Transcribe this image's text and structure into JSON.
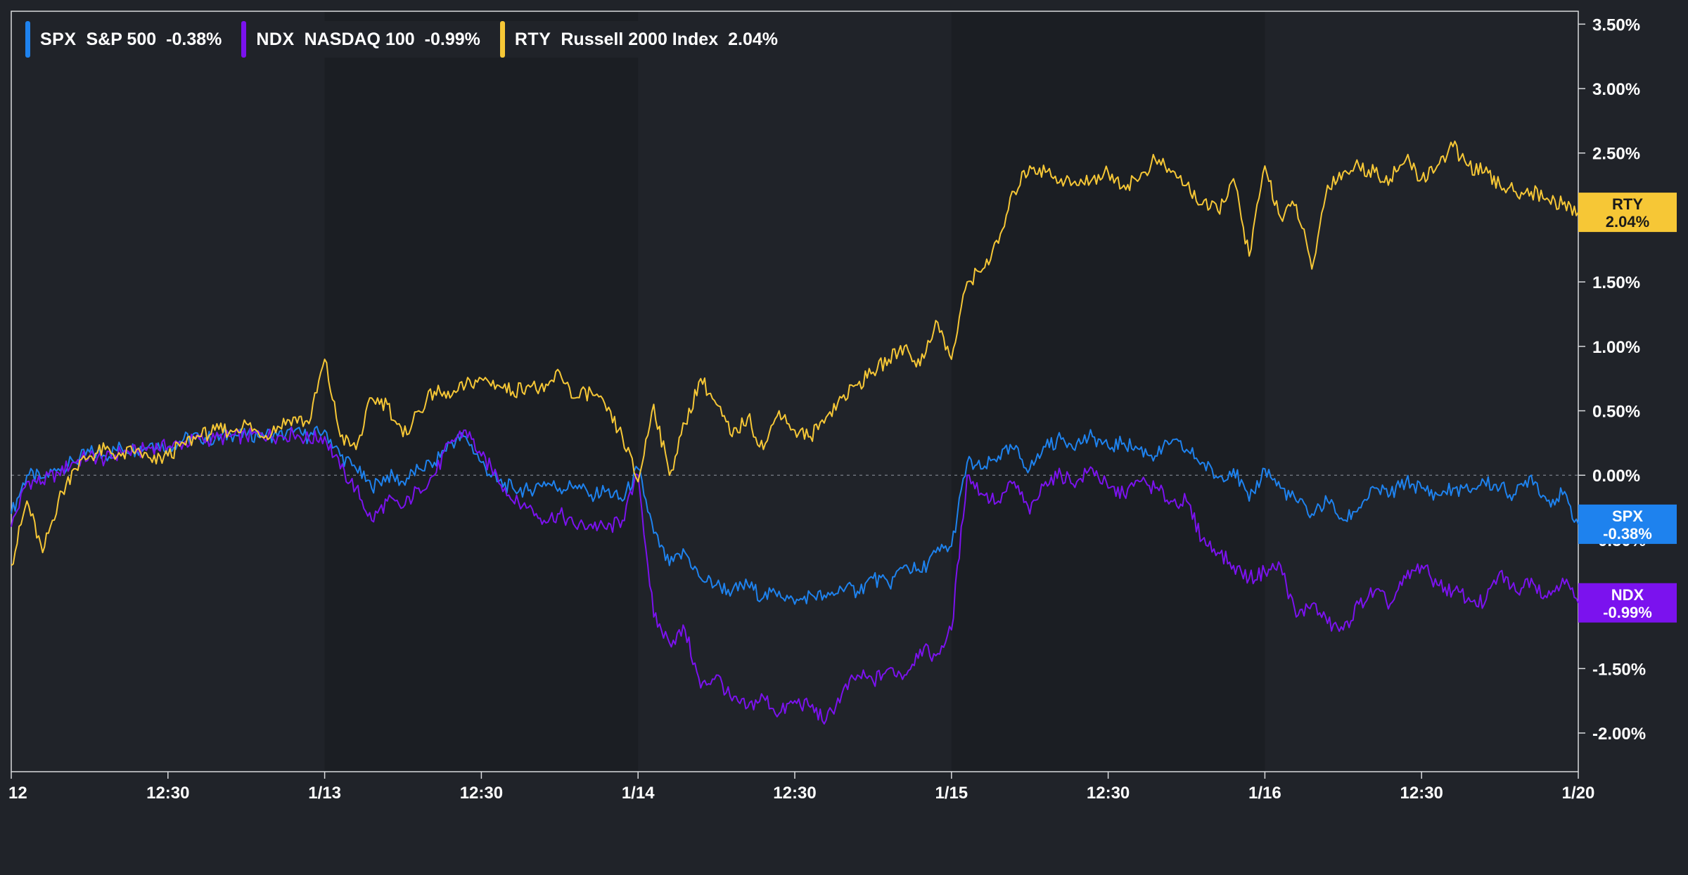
{
  "chart_data": {
    "type": "line",
    "ylabel_format": "percent",
    "ylim": [
      -2.3,
      3.6
    ],
    "yticks": [
      "3.50%",
      "3.00%",
      "2.50%",
      "2.00%",
      "1.50%",
      "1.00%",
      "0.50%",
      "0.00%",
      "-0.50%",
      "-1.00%",
      "-1.50%",
      "-2.00%"
    ],
    "ytick_values": [
      3.5,
      3.0,
      2.5,
      2.0,
      1.5,
      1.0,
      0.5,
      0.0,
      -0.5,
      -1.0,
      -1.5,
      -2.0
    ],
    "xticks": [
      "12",
      "12:30",
      "1/13",
      "12:30",
      "1/14",
      "12:30",
      "1/15",
      "12:30",
      "1/16",
      "12:30",
      "1/20"
    ],
    "xtick_values": [
      0,
      0.5,
      1,
      1.5,
      2,
      2.5,
      3,
      3.5,
      4,
      4.5,
      5
    ],
    "xlim": [
      0,
      5
    ],
    "baseline": 0,
    "grid": false,
    "legend_position": "top-left",
    "shaded_sessions": [
      [
        1,
        2
      ],
      [
        3,
        4
      ]
    ],
    "series": [
      {
        "code": "SPX",
        "name": "S&P 500",
        "change": "-0.38%",
        "last": -0.38,
        "color": "#1e82ee",
        "x": [
          0.0,
          0.05,
          0.1,
          0.15,
          0.2,
          0.25,
          0.3,
          0.35,
          0.4,
          0.45,
          0.5,
          0.55,
          0.6,
          0.65,
          0.7,
          0.75,
          0.8,
          0.85,
          0.9,
          0.95,
          1.0,
          1.05,
          1.1,
          1.15,
          1.2,
          1.25,
          1.3,
          1.35,
          1.4,
          1.45,
          1.5,
          1.55,
          1.6,
          1.65,
          1.7,
          1.75,
          1.8,
          1.85,
          1.9,
          1.95,
          2.0,
          2.05,
          2.1,
          2.15,
          2.2,
          2.25,
          2.3,
          2.35,
          2.4,
          2.45,
          2.5,
          2.55,
          2.6,
          2.65,
          2.7,
          2.75,
          2.8,
          2.85,
          2.9,
          2.95,
          3.0,
          3.05,
          3.1,
          3.15,
          3.2,
          3.25,
          3.3,
          3.35,
          3.4,
          3.45,
          3.5,
          3.55,
          3.6,
          3.65,
          3.7,
          3.75,
          3.8,
          3.85,
          3.9,
          3.95,
          4.0,
          4.05,
          4.1,
          4.15,
          4.2,
          4.25,
          4.3,
          4.35,
          4.4,
          4.45,
          4.5,
          4.55,
          4.6,
          4.65,
          4.7,
          4.75,
          4.8,
          4.85,
          4.9,
          4.95,
          5.0
        ],
        "y": [
          -0.3,
          0.0,
          -0.02,
          0.05,
          0.1,
          0.18,
          0.15,
          0.22,
          0.2,
          0.25,
          0.22,
          0.28,
          0.3,
          0.28,
          0.32,
          0.3,
          0.33,
          0.3,
          0.33,
          0.3,
          0.35,
          0.15,
          0.05,
          -0.1,
          0.0,
          -0.05,
          0.05,
          0.1,
          0.25,
          0.3,
          0.1,
          -0.05,
          -0.1,
          -0.12,
          -0.05,
          -0.1,
          -0.08,
          -0.15,
          -0.12,
          -0.2,
          0.05,
          -0.45,
          -0.7,
          -0.6,
          -0.8,
          -0.85,
          -0.9,
          -0.85,
          -0.95,
          -0.9,
          -1.0,
          -0.92,
          -0.95,
          -0.88,
          -0.9,
          -0.8,
          -0.85,
          -0.7,
          -0.75,
          -0.6,
          -0.55,
          0.1,
          0.05,
          0.15,
          0.2,
          0.05,
          0.22,
          0.28,
          0.25,
          0.3,
          0.22,
          0.25,
          0.2,
          0.15,
          0.25,
          0.2,
          0.1,
          -0.02,
          0.05,
          -0.2,
          0.05,
          -0.1,
          -0.2,
          -0.3,
          -0.2,
          -0.35,
          -0.25,
          -0.1,
          -0.15,
          -0.05,
          -0.1,
          -0.15,
          -0.1,
          -0.12,
          -0.05,
          -0.1,
          -0.15,
          0.0,
          -0.2,
          -0.15,
          -0.38
        ]
      },
      {
        "code": "NDX",
        "name": "NASDAQ 100",
        "change": "-0.99%",
        "last": -0.99,
        "color": "#7b12ee",
        "x": [
          0.0,
          0.05,
          0.1,
          0.15,
          0.2,
          0.25,
          0.3,
          0.35,
          0.4,
          0.45,
          0.5,
          0.55,
          0.6,
          0.65,
          0.7,
          0.75,
          0.8,
          0.85,
          0.9,
          0.95,
          1.0,
          1.05,
          1.1,
          1.15,
          1.2,
          1.25,
          1.3,
          1.35,
          1.4,
          1.45,
          1.5,
          1.55,
          1.6,
          1.65,
          1.7,
          1.75,
          1.8,
          1.85,
          1.9,
          1.95,
          2.0,
          2.05,
          2.1,
          2.15,
          2.2,
          2.25,
          2.3,
          2.35,
          2.4,
          2.45,
          2.5,
          2.55,
          2.6,
          2.65,
          2.7,
          2.75,
          2.8,
          2.85,
          2.9,
          2.95,
          3.0,
          3.05,
          3.1,
          3.15,
          3.2,
          3.25,
          3.3,
          3.35,
          3.4,
          3.45,
          3.5,
          3.55,
          3.6,
          3.65,
          3.7,
          3.75,
          3.8,
          3.85,
          3.9,
          3.95,
          4.0,
          4.05,
          4.1,
          4.15,
          4.2,
          4.25,
          4.3,
          4.35,
          4.4,
          4.45,
          4.5,
          4.55,
          4.6,
          4.65,
          4.7,
          4.75,
          4.8,
          4.85,
          4.9,
          4.95,
          5.0
        ],
        "y": [
          -0.4,
          -0.05,
          -0.05,
          0.02,
          0.1,
          0.15,
          0.12,
          0.18,
          0.18,
          0.22,
          0.22,
          0.25,
          0.28,
          0.28,
          0.3,
          0.3,
          0.32,
          0.3,
          0.32,
          0.28,
          0.3,
          0.05,
          -0.1,
          -0.35,
          -0.2,
          -0.25,
          -0.1,
          0.0,
          0.25,
          0.35,
          0.15,
          0.0,
          -0.2,
          -0.25,
          -0.35,
          -0.3,
          -0.4,
          -0.38,
          -0.42,
          -0.35,
          0.0,
          -1.1,
          -1.3,
          -1.2,
          -1.65,
          -1.55,
          -1.75,
          -1.8,
          -1.72,
          -1.85,
          -1.75,
          -1.8,
          -1.9,
          -1.7,
          -1.55,
          -1.6,
          -1.5,
          -1.55,
          -1.35,
          -1.4,
          -1.2,
          0.0,
          -0.15,
          -0.2,
          -0.05,
          -0.3,
          -0.05,
          0.0,
          -0.05,
          0.05,
          -0.1,
          -0.15,
          -0.05,
          -0.1,
          -0.2,
          -0.2,
          -0.5,
          -0.6,
          -0.7,
          -0.8,
          -0.75,
          -0.7,
          -1.1,
          -1.0,
          -1.15,
          -1.2,
          -1.0,
          -0.9,
          -1.0,
          -0.8,
          -0.7,
          -0.85,
          -0.9,
          -0.95,
          -1.0,
          -0.75,
          -0.9,
          -0.8,
          -0.95,
          -0.8,
          -0.99
        ]
      },
      {
        "code": "RTY",
        "name": "Russell 2000 Index",
        "change": "2.04%",
        "last": 2.04,
        "color": "#f6c736",
        "x": [
          0.0,
          0.05,
          0.1,
          0.15,
          0.2,
          0.25,
          0.3,
          0.35,
          0.4,
          0.45,
          0.5,
          0.55,
          0.6,
          0.65,
          0.7,
          0.75,
          0.8,
          0.85,
          0.9,
          0.95,
          1.0,
          1.05,
          1.1,
          1.15,
          1.2,
          1.25,
          1.3,
          1.35,
          1.4,
          1.45,
          1.5,
          1.55,
          1.6,
          1.65,
          1.7,
          1.75,
          1.8,
          1.85,
          1.9,
          1.95,
          2.0,
          2.05,
          2.1,
          2.15,
          2.2,
          2.25,
          2.3,
          2.35,
          2.4,
          2.45,
          2.5,
          2.55,
          2.6,
          2.65,
          2.7,
          2.75,
          2.8,
          2.85,
          2.9,
          2.95,
          3.0,
          3.05,
          3.1,
          3.15,
          3.2,
          3.25,
          3.3,
          3.35,
          3.4,
          3.45,
          3.5,
          3.55,
          3.6,
          3.65,
          3.7,
          3.75,
          3.8,
          3.85,
          3.9,
          3.95,
          4.0,
          4.05,
          4.1,
          4.15,
          4.2,
          4.25,
          4.3,
          4.35,
          4.4,
          4.45,
          4.5,
          4.55,
          4.6,
          4.65,
          4.7,
          4.75,
          4.8,
          4.85,
          4.9,
          4.95,
          5.0
        ],
        "y": [
          -0.7,
          -0.2,
          -0.6,
          -0.2,
          0.05,
          0.15,
          0.2,
          0.15,
          0.2,
          0.1,
          0.15,
          0.25,
          0.3,
          0.35,
          0.35,
          0.4,
          0.3,
          0.38,
          0.45,
          0.4,
          0.9,
          0.3,
          0.2,
          0.6,
          0.55,
          0.3,
          0.5,
          0.65,
          0.6,
          0.7,
          0.75,
          0.7,
          0.65,
          0.7,
          0.65,
          0.8,
          0.6,
          0.65,
          0.5,
          0.3,
          -0.05,
          0.55,
          0.0,
          0.4,
          0.75,
          0.55,
          0.3,
          0.45,
          0.2,
          0.5,
          0.35,
          0.3,
          0.45,
          0.6,
          0.7,
          0.8,
          0.9,
          1.0,
          0.85,
          1.2,
          0.9,
          1.5,
          1.6,
          1.8,
          2.2,
          2.4,
          2.35,
          2.3,
          2.25,
          2.3,
          2.35,
          2.25,
          2.3,
          2.45,
          2.35,
          2.25,
          2.1,
          2.05,
          2.3,
          1.7,
          2.4,
          2.0,
          2.1,
          1.6,
          2.25,
          2.35,
          2.4,
          2.35,
          2.3,
          2.45,
          2.3,
          2.4,
          2.55,
          2.4,
          2.35,
          2.25,
          2.2,
          2.2,
          2.15,
          2.1,
          2.04
        ]
      }
    ]
  }
}
